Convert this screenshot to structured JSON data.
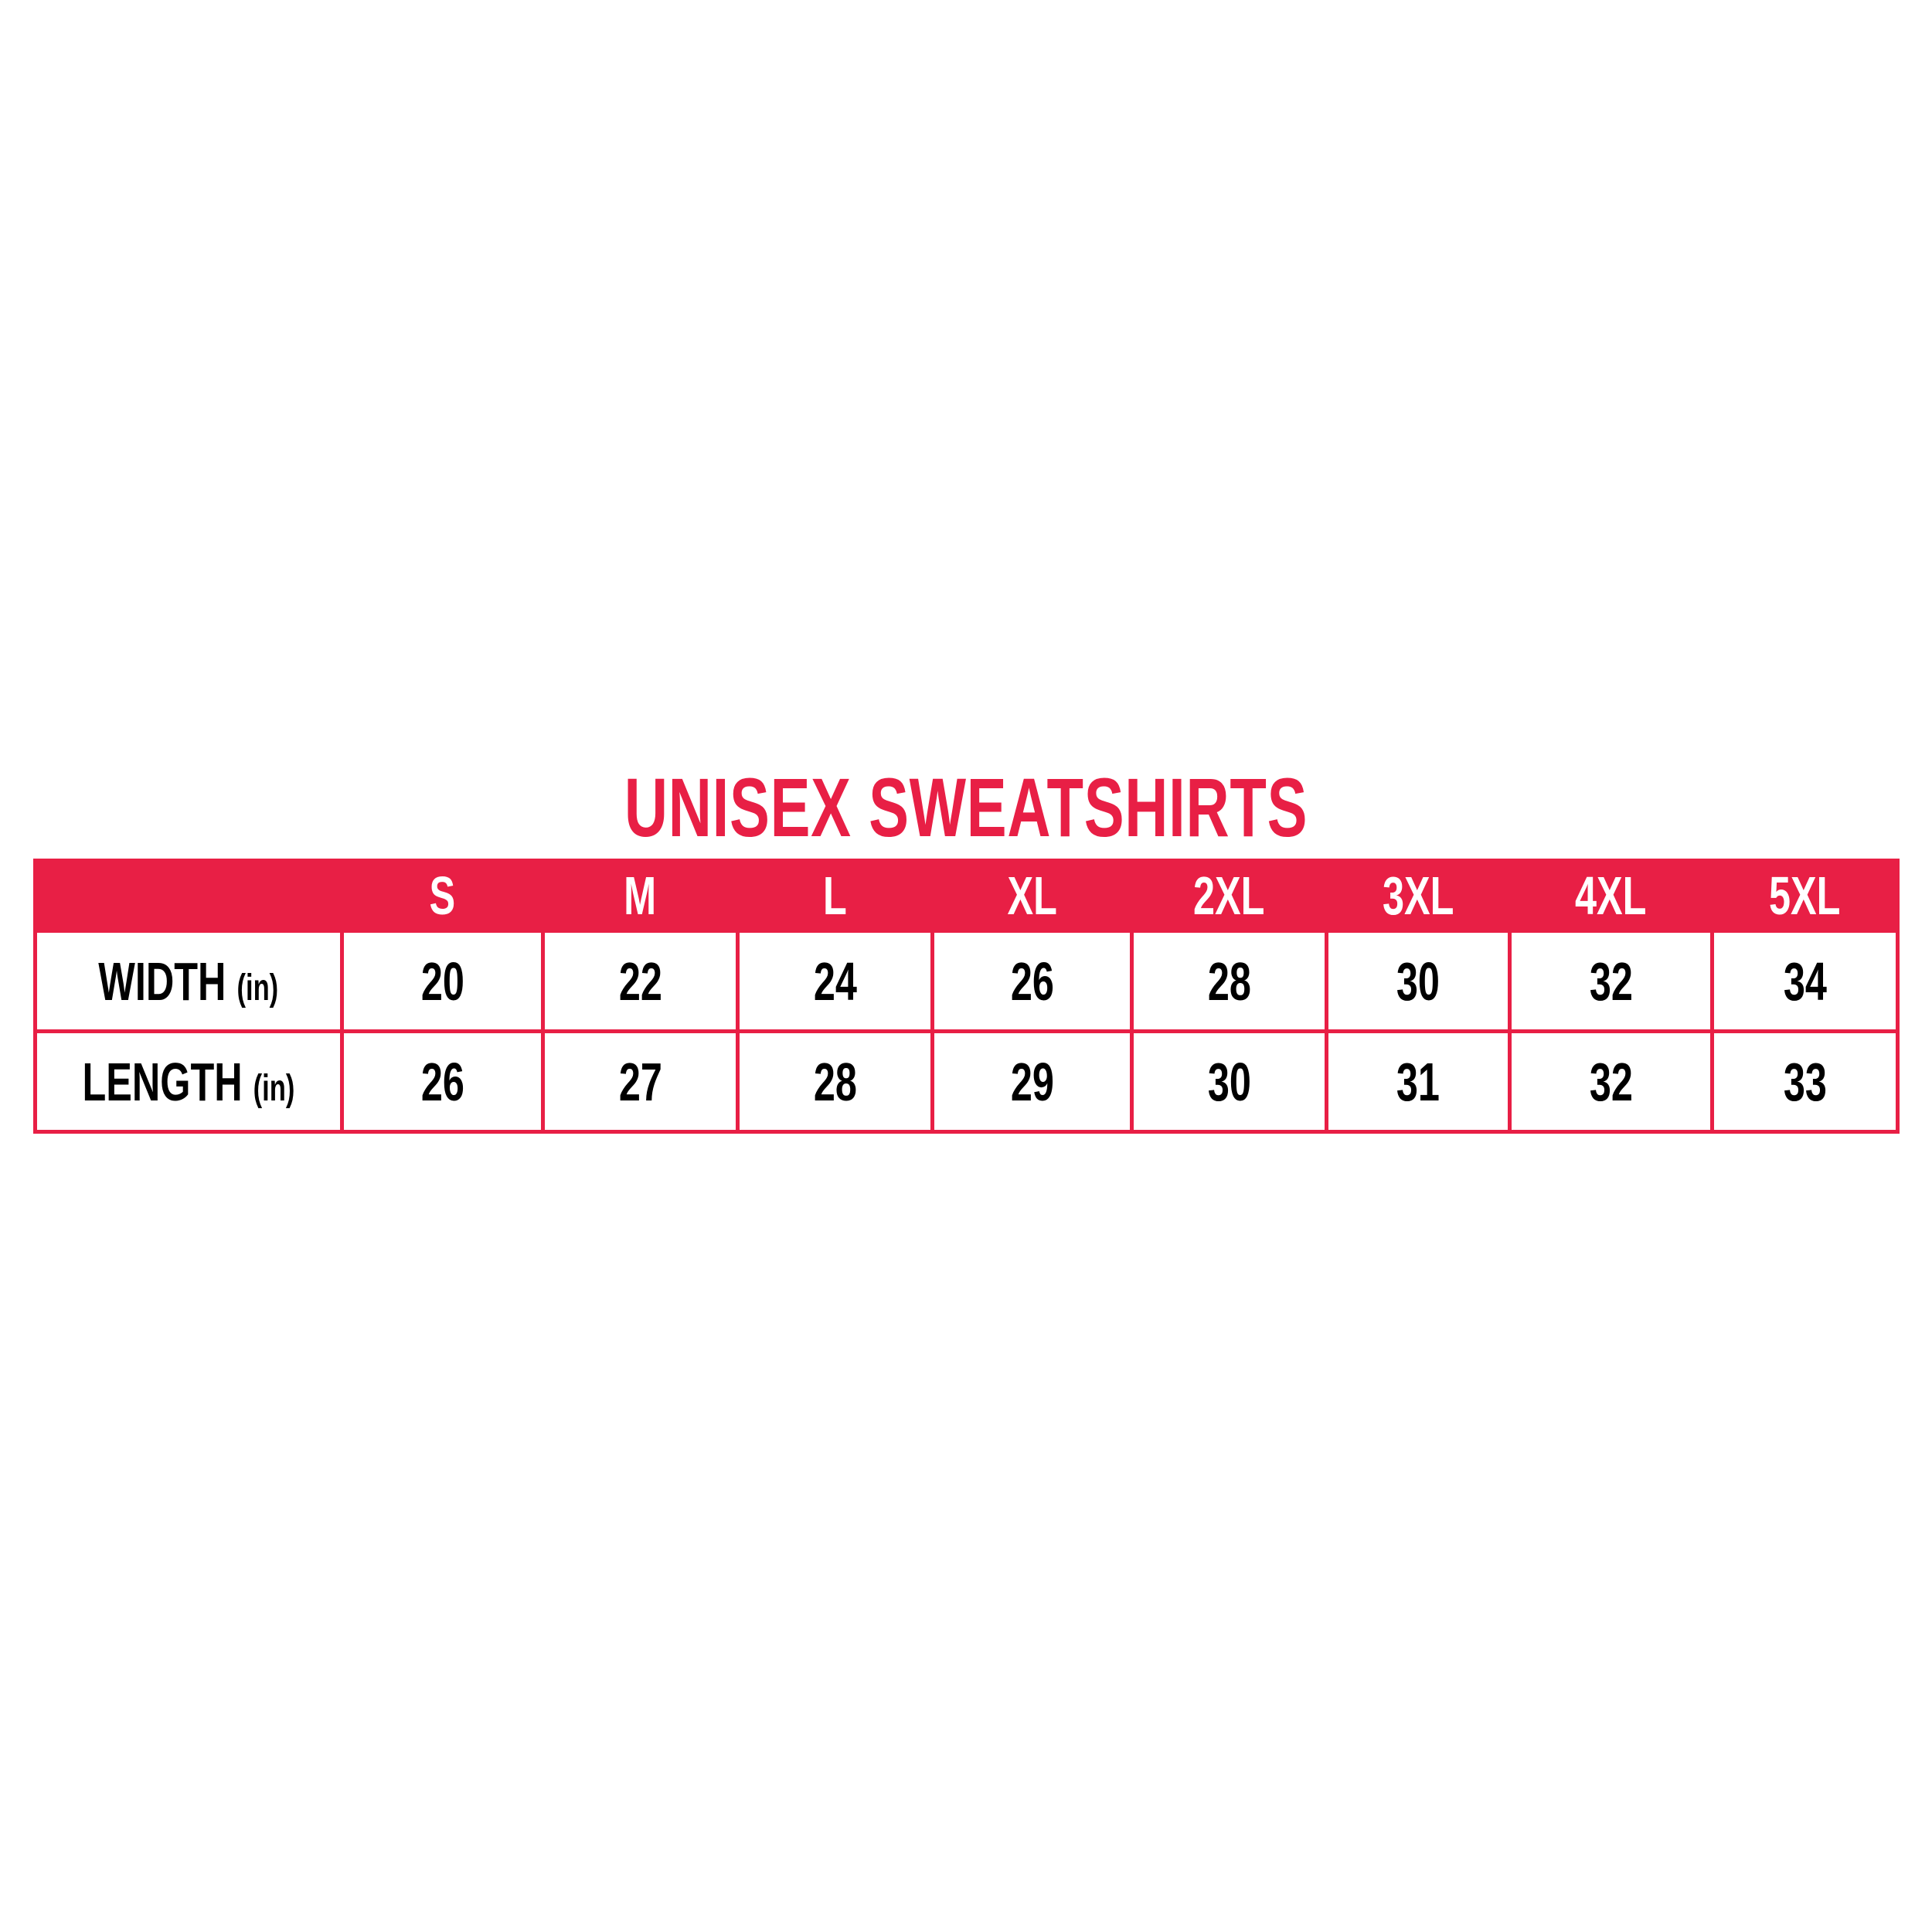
{
  "title": "UNISEX SWEATSHIRTS",
  "accent_color": "#E81F45",
  "sizes": [
    "S",
    "M",
    "L",
    "XL",
    "2XL",
    "3XL",
    "4XL",
    "5XL"
  ],
  "rows": [
    {
      "label": "WIDTH",
      "unit": "(in)",
      "values": [
        "20",
        "22",
        "24",
        "26",
        "28",
        "30",
        "32",
        "34"
      ]
    },
    {
      "label": "LENGTH",
      "unit": "(in)",
      "values": [
        "26",
        "27",
        "28",
        "29",
        "30",
        "31",
        "32",
        "33"
      ]
    }
  ]
}
